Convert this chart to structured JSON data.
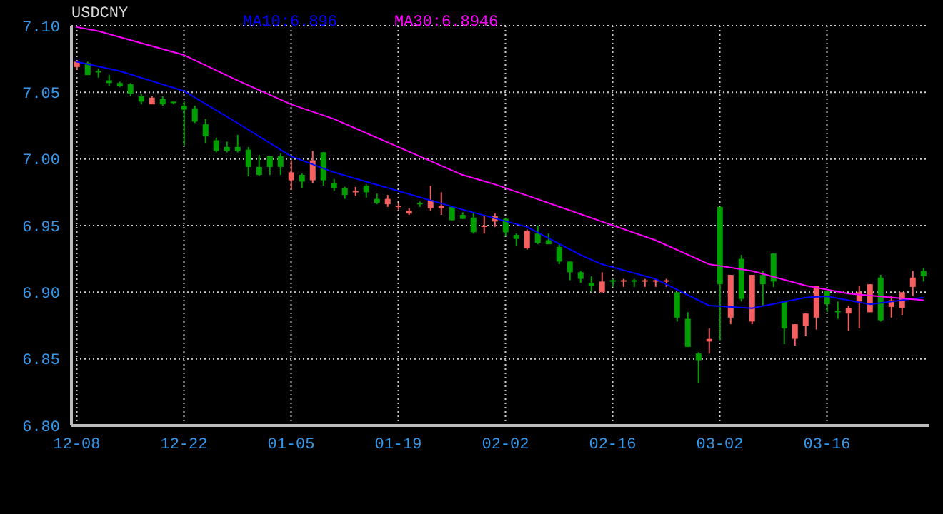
{
  "chart_data": {
    "type": "candlestick",
    "title": "USDCNY",
    "categories": [
      "12-08",
      null,
      null,
      null,
      null,
      null,
      null,
      null,
      null,
      null,
      "12-22",
      null,
      null,
      null,
      null,
      null,
      null,
      null,
      null,
      null,
      "01-05",
      null,
      null,
      null,
      null,
      null,
      null,
      null,
      null,
      null,
      "01-19",
      null,
      null,
      null,
      null,
      null,
      null,
      null,
      null,
      null,
      "02-02",
      null,
      null,
      null,
      null,
      null,
      null,
      null,
      null,
      null,
      "02-16",
      null,
      null,
      null,
      null,
      null,
      null,
      null,
      null,
      null,
      "03-02",
      null,
      null,
      null,
      null,
      null,
      null,
      null,
      null,
      null,
      "03-16",
      null,
      null,
      null,
      null,
      null,
      null,
      null,
      null,
      null
    ],
    "ohlc": [
      [
        7.069,
        7.074,
        7.067,
        7.073
      ],
      [
        7.072,
        7.073,
        7.063,
        7.063
      ],
      [
        7.066,
        7.068,
        7.061,
        7.065
      ],
      [
        7.059,
        7.063,
        7.055,
        7.057
      ],
      [
        7.057,
        7.058,
        7.054,
        7.055
      ],
      [
        7.056,
        7.057,
        7.047,
        7.049
      ],
      [
        7.047,
        7.049,
        7.041,
        7.043
      ],
      [
        7.041,
        7.047,
        7.041,
        7.046
      ],
      [
        7.045,
        7.047,
        7.04,
        7.041
      ],
      [
        7.043,
        7.043,
        7.041,
        7.042
      ],
      [
        7.04,
        7.043,
        7.01,
        7.037
      ],
      [
        7.038,
        7.04,
        7.027,
        7.028
      ],
      [
        7.026,
        7.03,
        7.012,
        7.017
      ],
      [
        7.014,
        7.016,
        7.005,
        7.006
      ],
      [
        7.009,
        7.013,
        7.005,
        7.006
      ],
      [
        7.009,
        7.018,
        7.005,
        7.006
      ],
      [
        7.007,
        7.009,
        6.987,
        6.994
      ],
      [
        6.994,
        7.003,
        6.987,
        6.988
      ],
      [
        7.002,
        7.002,
        6.988,
        6.994
      ],
      [
        7.002,
        7.004,
        6.988,
        6.994
      ],
      [
        6.984,
        6.999,
        6.977,
        6.99
      ],
      [
        6.988,
        6.989,
        6.978,
        6.983
      ],
      [
        6.984,
        7.006,
        6.982,
        6.999
      ],
      [
        7.005,
        7.005,
        6.98,
        6.984
      ],
      [
        6.982,
        6.985,
        6.976,
        6.978
      ],
      [
        6.978,
        6.979,
        6.97,
        6.973
      ],
      [
        6.975,
        6.979,
        6.972,
        6.976
      ],
      [
        6.98,
        6.981,
        6.971,
        6.975
      ],
      [
        6.97,
        6.974,
        6.966,
        6.967
      ],
      [
        6.966,
        6.973,
        6.964,
        6.97
      ],
      [
        6.964,
        6.967,
        6.962,
        6.965
      ],
      [
        6.959,
        6.963,
        6.958,
        6.961
      ],
      [
        6.967,
        6.968,
        6.964,
        6.966
      ],
      [
        6.963,
        6.98,
        6.961,
        6.969
      ],
      [
        6.963,
        6.975,
        6.958,
        6.965
      ],
      [
        6.964,
        6.965,
        6.954,
        6.954
      ],
      [
        6.958,
        6.96,
        6.955,
        6.955
      ],
      [
        6.956,
        6.96,
        6.944,
        6.945
      ],
      [
        6.949,
        6.957,
        6.944,
        6.95
      ],
      [
        6.953,
        6.959,
        6.949,
        6.957
      ],
      [
        6.955,
        6.956,
        6.942,
        6.945
      ],
      [
        6.943,
        6.944,
        6.935,
        6.94
      ],
      [
        6.933,
        6.947,
        6.932,
        6.946
      ],
      [
        6.944,
        6.95,
        6.936,
        6.937
      ],
      [
        6.939,
        6.944,
        6.936,
        6.936
      ],
      [
        6.934,
        6.936,
        6.921,
        6.923
      ],
      [
        6.923,
        6.923,
        6.909,
        6.915
      ],
      [
        6.915,
        6.916,
        6.907,
        6.91
      ],
      [
        6.907,
        6.912,
        6.9,
        6.905
      ],
      [
        6.9,
        6.915,
        6.9,
        6.908
      ],
      [
        6.909,
        6.91,
        6.904,
        6.908
      ],
      [
        6.908,
        6.91,
        6.904,
        6.909
      ],
      [
        6.909,
        6.91,
        6.904,
        6.908
      ],
      [
        6.908,
        6.91,
        6.904,
        6.909
      ],
      [
        6.908,
        6.91,
        6.904,
        6.909
      ],
      [
        6.908,
        6.91,
        6.904,
        6.909
      ],
      [
        6.9,
        6.9,
        6.878,
        6.881
      ],
      [
        6.88,
        6.885,
        6.859,
        6.859
      ],
      [
        6.854,
        6.855,
        6.832,
        6.849
      ],
      [
        6.863,
        6.873,
        6.854,
        6.865
      ],
      [
        6.964,
        6.964,
        6.864,
        6.906
      ],
      [
        6.881,
        6.913,
        6.876,
        6.913
      ],
      [
        6.925,
        6.928,
        6.893,
        6.895
      ],
      [
        6.878,
        6.913,
        6.876,
        6.913
      ],
      [
        6.913,
        6.916,
        6.89,
        6.906
      ],
      [
        6.929,
        6.929,
        6.904,
        6.908
      ],
      [
        6.893,
        6.893,
        6.861,
        6.873
      ],
      [
        6.865,
        6.876,
        6.86,
        6.876
      ],
      [
        6.875,
        6.884,
        6.867,
        6.884
      ],
      [
        6.881,
        6.905,
        6.872,
        6.905
      ],
      [
        6.901,
        6.901,
        6.885,
        6.891
      ],
      [
        6.886,
        6.893,
        6.88,
        6.886
      ],
      [
        6.884,
        6.89,
        6.871,
        6.888
      ],
      [
        6.893,
        6.905,
        6.873,
        6.9
      ],
      [
        6.885,
        6.906,
        6.885,
        6.906
      ],
      [
        6.911,
        6.913,
        6.878,
        6.879
      ],
      [
        6.889,
        6.897,
        6.881,
        6.894
      ],
      [
        6.888,
        6.9,
        6.883,
        6.9
      ],
      [
        6.904,
        6.916,
        6.897,
        6.911
      ],
      [
        6.916,
        6.918,
        6.908,
        6.912
      ]
    ],
    "colors": [
      "#f65f5f",
      "#009f00",
      "#009f00",
      "#009f00",
      "#009f00",
      "#009f00",
      "#009f00",
      "#f65f5f",
      "#009f00",
      "#009f00",
      "#009f00",
      "#009f00",
      "#009f00",
      "#009f00",
      "#009f00",
      "#009f00",
      "#009f00",
      "#009f00",
      "#009f00",
      "#009f00",
      "#f65f5f",
      "#009f00",
      "#f65f5f",
      "#009f00",
      "#009f00",
      "#009f00",
      "#f65f5f",
      "#009f00",
      "#009f00",
      "#f65f5f",
      "#f65f5f",
      "#f65f5f",
      "#009f00",
      "#f65f5f",
      "#f65f5f",
      "#009f00",
      "#009f00",
      "#009f00",
      "#f65f5f",
      "#f65f5f",
      "#009f00",
      "#009f00",
      "#f65f5f",
      "#009f00",
      "#009f00",
      "#009f00",
      "#009f00",
      "#009f00",
      "#009f00",
      "#f65f5f",
      "#009f00",
      "#f65f5f",
      "#009f00",
      "#f65f5f",
      "#f65f5f",
      "#f65f5f",
      "#009f00",
      "#009f00",
      "#009f00",
      "#f65f5f",
      "#009f00",
      "#f65f5f",
      "#009f00",
      "#f65f5f",
      "#009f00",
      "#009f00",
      "#009f00",
      "#f65f5f",
      "#f65f5f",
      "#f65f5f",
      "#009f00",
      "#009f00",
      "#f65f5f",
      "#f65f5f",
      "#f65f5f",
      "#009f00",
      "#f65f5f",
      "#f65f5f",
      "#f65f5f",
      "#009f00"
    ],
    "series": [
      {
        "name": "MA10:6.896",
        "type": "line",
        "color": "#0000ff",
        "values": [
          7.073,
          null,
          null,
          null,
          7.066,
          null,
          null,
          null,
          null,
          null,
          7.051,
          null,
          null,
          null,
          null,
          7.027,
          null,
          null,
          null,
          null,
          7.002,
          null,
          null,
          null,
          6.99,
          null,
          null,
          null,
          null,
          null,
          6.976,
          null,
          null,
          null,
          null,
          null,
          6.962,
          null,
          null,
          null,
          null,
          null,
          6.949,
          null,
          null,
          null,
          null,
          6.928,
          null,
          6.921,
          null,
          null,
          null,
          null,
          6.91,
          null,
          null,
          null,
          null,
          6.89,
          null,
          null,
          null,
          6.888,
          null,
          null,
          null,
          null,
          6.896,
          null,
          6.897,
          null,
          null,
          null,
          6.891,
          null,
          null,
          null,
          null,
          6.896
        ]
      },
      {
        "name": "MA30:6.8946",
        "type": "line",
        "color": "#ff00ff",
        "values": [
          7.099,
          null,
          7.096,
          null,
          null,
          null,
          null,
          null,
          null,
          null,
          7.078,
          null,
          null,
          null,
          null,
          7.059,
          null,
          null,
          null,
          null,
          7.041,
          null,
          null,
          null,
          7.03,
          null,
          null,
          null,
          null,
          null,
          7.009,
          null,
          null,
          null,
          null,
          null,
          6.988,
          null,
          null,
          6.981,
          null,
          null,
          null,
          null,
          null,
          null,
          null,
          null,
          null,
          6.953,
          null,
          null,
          null,
          null,
          6.939,
          null,
          null,
          null,
          null,
          6.921,
          null,
          null,
          null,
          6.916,
          null,
          null,
          null,
          null,
          6.905,
          null,
          null,
          null,
          6.899,
          null,
          null,
          null,
          null,
          null,
          null,
          6.894
        ]
      }
    ],
    "ylim": [
      6.8,
      7.1
    ],
    "yticks": [
      {
        "value": 6.8,
        "label": "6.80"
      },
      {
        "value": 6.85,
        "label": "6.85"
      },
      {
        "value": 6.9,
        "label": "6.90"
      },
      {
        "value": 6.95,
        "label": "6.95"
      },
      {
        "value": 7.0,
        "label": "7.00"
      },
      {
        "value": 7.05,
        "label": "7.05"
      },
      {
        "value": 7.1,
        "label": "7.10"
      }
    ],
    "grid": true,
    "legend": "top"
  }
}
